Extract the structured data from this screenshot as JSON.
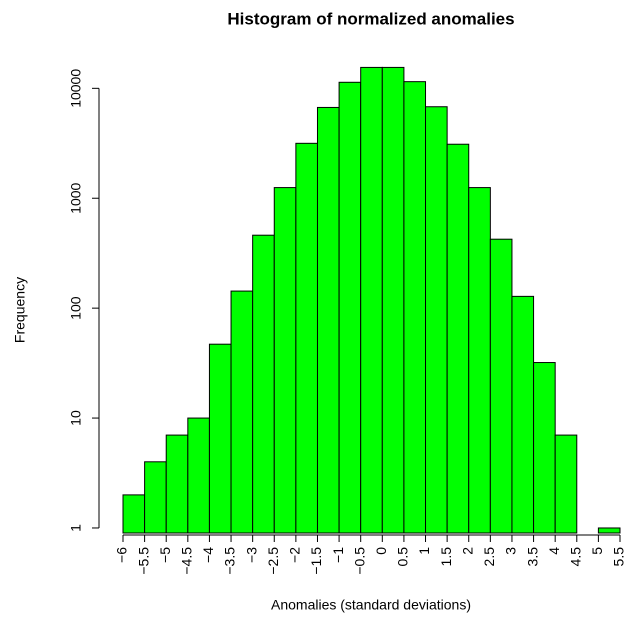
{
  "chart_data": {
    "type": "histogram",
    "title": "Histogram of normalized anomalies",
    "x_label": "Anomalies (standard deviations)",
    "y_label": "Frequency",
    "bins": [
      -6,
      -5.5,
      -5,
      -4.5,
      -4,
      -3.5,
      -3,
      -2.5,
      -2,
      -1.5,
      -1,
      -0.5,
      0,
      0.5,
      1,
      1.5,
      2,
      2.5,
      3,
      3.5,
      4,
      4.5,
      5,
      5.5
    ],
    "values": [
      2,
      4,
      7,
      10,
      47,
      143,
      461,
      1250,
      3160,
      6700,
      11350,
      15500,
      15500,
      11500,
      6800,
      3100,
      1250,
      424,
      128,
      32,
      7,
      null,
      1
    ],
    "color": "#00ff00",
    "log_y": true,
    "xlim": [
      -6,
      5.5
    ],
    "ylim": [
      0.9,
      17000
    ],
    "xticks": [
      {
        "value": -6,
        "label": "−6"
      },
      {
        "value": -5.5,
        "label": "−5.5"
      },
      {
        "value": -5,
        "label": "−5"
      },
      {
        "value": -4.5,
        "label": "−4.5"
      },
      {
        "value": -4,
        "label": "−4"
      },
      {
        "value": -3.5,
        "label": "−3.5"
      },
      {
        "value": -3,
        "label": "−3"
      },
      {
        "value": -2.5,
        "label": "−2.5"
      },
      {
        "value": -2,
        "label": "−2"
      },
      {
        "value": -1.5,
        "label": "−1.5"
      },
      {
        "value": -1,
        "label": "−1"
      },
      {
        "value": -0.5,
        "label": "−0.5"
      },
      0,
      0.5,
      1,
      1.5,
      2,
      2.5,
      3,
      3.5,
      4,
      4.5,
      5,
      5.5
    ],
    "yticks": [
      1,
      10,
      100,
      1000,
      10000
    ]
  }
}
